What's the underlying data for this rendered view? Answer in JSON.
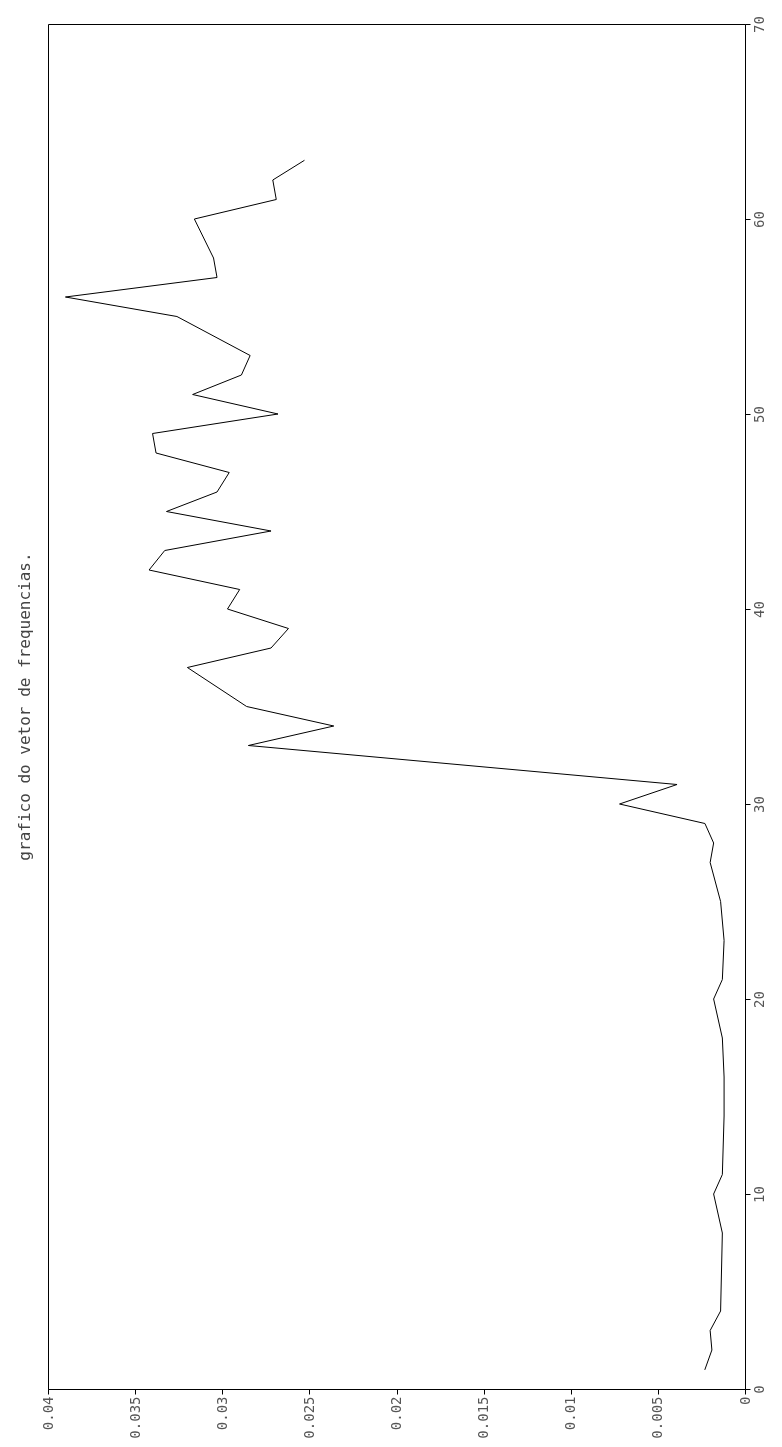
{
  "chart_data": {
    "type": "line",
    "title": "grafico do vetor de frequencias.",
    "x": [
      0.0023,
      0.0019,
      0.002,
      0.0014,
      0.0013,
      0.0018,
      0.0013,
      0.0012,
      0.0012,
      0.0013,
      0.0018,
      0.0013,
      0.0012,
      0.0014,
      0.002,
      0.0018,
      0.0023,
      0.0072,
      0.0039,
      0.0285,
      0.0236,
      0.0286,
      0.032,
      0.0272,
      0.0262,
      0.0297,
      0.029,
      0.0342,
      0.0333,
      0.0272,
      0.0332,
      0.0303,
      0.0296,
      0.0338,
      0.034,
      0.0268,
      0.0317,
      0.0289,
      0.0284,
      0.0326,
      0.039,
      0.0303,
      0.0305,
      0.0316,
      0.0269,
      0.0271,
      0.0253
    ],
    "series": [
      {
        "color": "#000000",
        "values": [
          1,
          2,
          3,
          4,
          8,
          10,
          11,
          14,
          16,
          18,
          20,
          21,
          23,
          25,
          27,
          28,
          29,
          30,
          31,
          33,
          34,
          35,
          37,
          38,
          39,
          40,
          41,
          42,
          43,
          44,
          45,
          46,
          47,
          48,
          49,
          50,
          51,
          52,
          53,
          55,
          56,
          57,
          58,
          60,
          61,
          62,
          63
        ]
      }
    ],
    "xlim": [
      0.04,
      0
    ],
    "xticks": [
      0.04,
      0.035,
      0.03,
      0.025,
      0.02,
      0.015,
      0.01,
      0.005,
      0
    ],
    "ylim": [
      0,
      70
    ],
    "yticks": [
      0,
      10,
      20,
      30,
      40,
      50,
      60,
      70
    ]
  }
}
